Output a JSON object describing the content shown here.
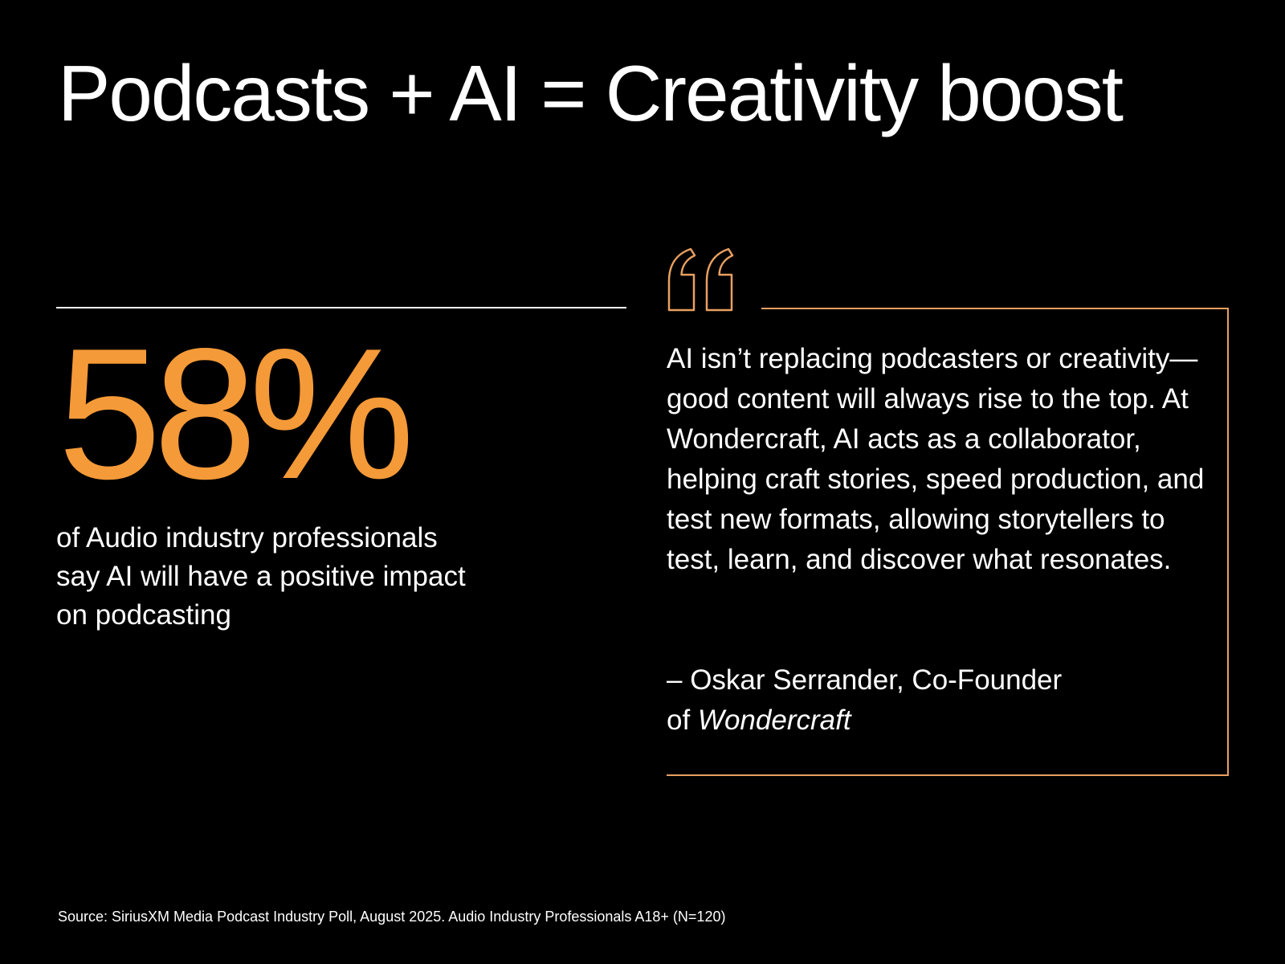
{
  "title": "Podcasts + AI = Creativity boost",
  "stat": {
    "value": "58%",
    "description_line1": "of Audio industry professionals",
    "description_line2": "say AI will have a positive impact",
    "description_line3": "on podcasting"
  },
  "quote": {
    "icon": "quote-mark-icon",
    "text": "AI isn’t replacing podcasters or creativity—good content will always rise to the top. At Wondercraft, AI acts as a collaborator, helping craft stories, speed production, and test new formats, allowing storytellers to test, learn, and discover what resonates.",
    "attribution_line1": "– Oskar Serrander, Co-Founder",
    "attribution_of": "of ",
    "attribution_company": "Wondercraft"
  },
  "source": "Source: SiriusXM Media Podcast Industry Poll, August 2025. Audio Industry Professionals A18+ (N=120)",
  "colors": {
    "background": "#000000",
    "text": "#ffffff",
    "accent": "#f59a38",
    "quote_outline": "#e8a060"
  }
}
